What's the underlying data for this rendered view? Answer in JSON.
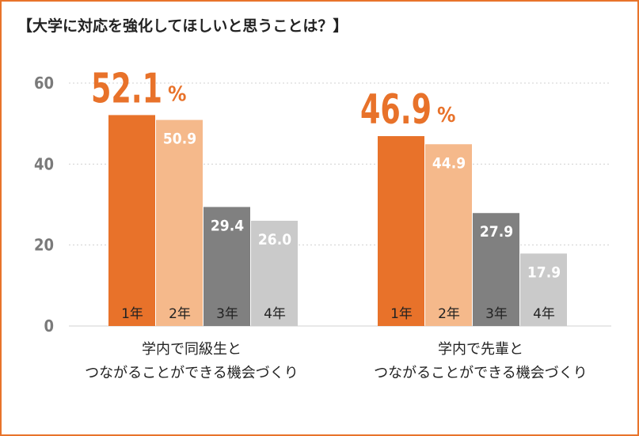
{
  "title": "【大学に対応を強化してほしいと思うことは？】",
  "colors": {
    "border": "#e8732a",
    "year1": "#e8722a",
    "year2": "#f5b98b",
    "year3": "#808080",
    "year4": "#cacaca",
    "highlight_text": "#e8722a"
  },
  "chart_data": {
    "type": "bar",
    "ylim": [
      0,
      60
    ],
    "yticks": [
      "0",
      "20",
      "40",
      "60"
    ],
    "grid": true,
    "categories": [
      "学内で同級生と\nつながることができる機会づくり",
      "学内で先輩と\nつながることができる機会づくり"
    ],
    "series": [
      {
        "name": "1年",
        "values": [
          52.1,
          46.9
        ],
        "labels": [
          "52.1",
          "46.9"
        ],
        "suffix": "%"
      },
      {
        "name": "2年",
        "values": [
          50.9,
          44.9
        ],
        "labels": [
          "50.9",
          "44.9"
        ]
      },
      {
        "name": "3年",
        "values": [
          29.4,
          27.9
        ],
        "labels": [
          "29.4",
          "27.9"
        ]
      },
      {
        "name": "4年",
        "values": [
          26.0,
          17.9
        ],
        "labels": [
          "26.0",
          "17.9"
        ]
      }
    ]
  },
  "category_labels": [
    {
      "line1": "学内で同級生と",
      "line2": "つながることができる機会づくり"
    },
    {
      "line1": "学内で先輩と",
      "line2": "つながることができる機会づくり"
    }
  ]
}
